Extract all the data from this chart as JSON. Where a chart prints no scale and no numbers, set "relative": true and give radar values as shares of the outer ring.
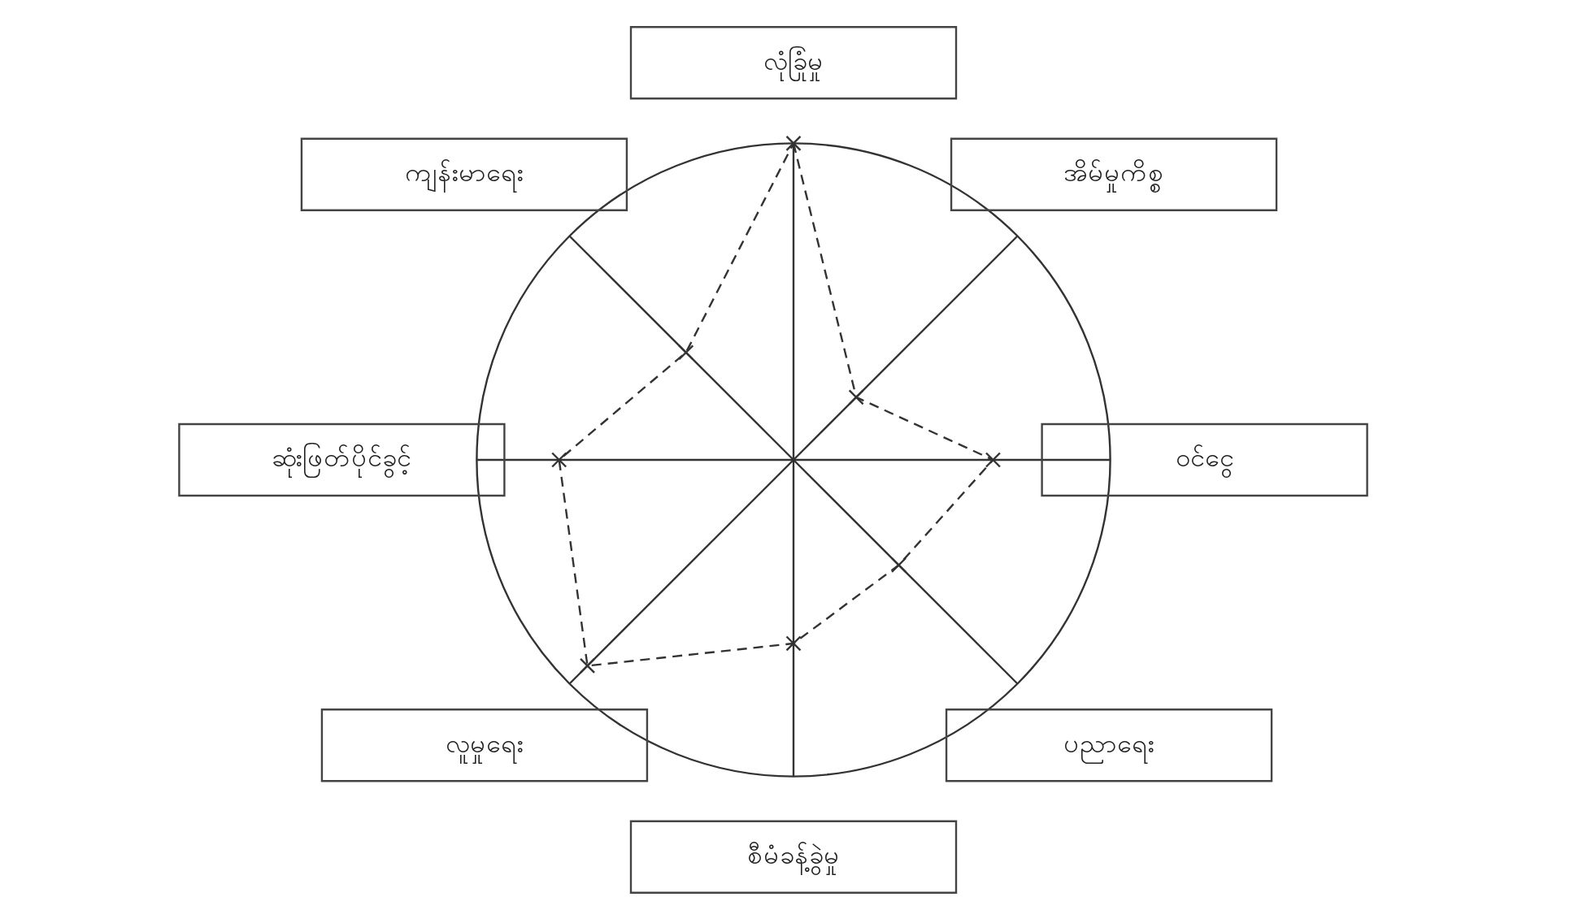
{
  "chart_data": {
    "type": "radar",
    "relative": true,
    "categories": [
      "လုံခြုံမှု",
      "အိမ်မှုကိစ္စ",
      "ဝင်ငွေ",
      "ပညာရေး",
      "စီမံခန့်ခွဲမှု",
      "လူမှုရေး",
      "ဆုံးဖြတ်ပိုင်ခွင့်",
      "ကျန်းမာရေး"
    ],
    "series": [
      {
        "color": "#333333",
        "values": [
          1.0,
          0.28,
          0.63,
          0.47,
          0.58,
          0.92,
          0.74,
          0.48
        ]
      }
    ],
    "marker": "cross",
    "line_style": "dashed",
    "legend": false
  }
}
